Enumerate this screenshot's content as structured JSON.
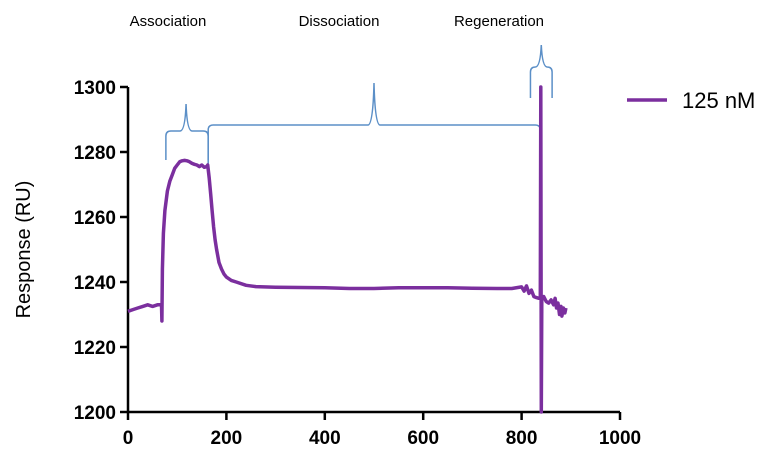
{
  "chart_data": {
    "type": "line",
    "title": "",
    "xlabel": "",
    "ylabel": "Response (RU)",
    "xlim": [
      0,
      1000
    ],
    "ylim": [
      1200,
      1300
    ],
    "x_ticks": [
      0,
      200,
      400,
      600,
      800,
      1000
    ],
    "y_ticks": [
      1200,
      1220,
      1240,
      1260,
      1280,
      1300
    ],
    "grid": false,
    "legend_position": "top-right",
    "colors": {
      "series": "#7b2f9e",
      "annotation": "#5b8fc7",
      "axis": "#000000"
    },
    "series": [
      {
        "name": "125 nM",
        "color": "#7b2f9e",
        "points": [
          [
            0,
            1231
          ],
          [
            10,
            1231.5
          ],
          [
            20,
            1232
          ],
          [
            30,
            1232.5
          ],
          [
            40,
            1233
          ],
          [
            50,
            1232.5
          ],
          [
            60,
            1233
          ],
          [
            68,
            1233
          ],
          [
            69,
            1228
          ],
          [
            70,
            1244
          ],
          [
            72,
            1255
          ],
          [
            75,
            1262
          ],
          [
            80,
            1268
          ],
          [
            85,
            1271
          ],
          [
            90,
            1273
          ],
          [
            95,
            1275
          ],
          [
            100,
            1276
          ],
          [
            105,
            1277
          ],
          [
            110,
            1277.3
          ],
          [
            115,
            1277.4
          ],
          [
            120,
            1277.3
          ],
          [
            125,
            1277
          ],
          [
            130,
            1276.5
          ],
          [
            135,
            1276.2
          ],
          [
            140,
            1276
          ],
          [
            145,
            1275.5
          ],
          [
            150,
            1276
          ],
          [
            155,
            1275.3
          ],
          [
            160,
            1275.5
          ],
          [
            162,
            1276
          ],
          [
            165,
            1272
          ],
          [
            168,
            1267
          ],
          [
            171,
            1262
          ],
          [
            174,
            1257
          ],
          [
            177,
            1253
          ],
          [
            180,
            1250
          ],
          [
            185,
            1246
          ],
          [
            190,
            1244
          ],
          [
            195,
            1242.5
          ],
          [
            200,
            1241.5
          ],
          [
            210,
            1240.5
          ],
          [
            220,
            1240
          ],
          [
            240,
            1239
          ],
          [
            260,
            1238.6
          ],
          [
            300,
            1238.4
          ],
          [
            350,
            1238.3
          ],
          [
            400,
            1238.2
          ],
          [
            450,
            1238
          ],
          [
            500,
            1238
          ],
          [
            550,
            1238.2
          ],
          [
            600,
            1238.2
          ],
          [
            650,
            1238.2
          ],
          [
            700,
            1238.1
          ],
          [
            750,
            1238
          ],
          [
            780,
            1238
          ],
          [
            800,
            1238.5
          ],
          [
            805,
            1237.2
          ],
          [
            810,
            1238.8
          ],
          [
            815,
            1236.5
          ],
          [
            820,
            1237.5
          ],
          [
            825,
            1235.5
          ],
          [
            830,
            1235.2
          ],
          [
            835,
            1235
          ],
          [
            838,
            1235
          ],
          [
            839,
            1300
          ],
          [
            840,
            1200
          ],
          [
            841,
            1235
          ],
          [
            845,
            1235.5
          ],
          [
            850,
            1234
          ],
          [
            855,
            1233.5
          ],
          [
            860,
            1234.5
          ],
          [
            865,
            1233
          ],
          [
            868,
            1235
          ],
          [
            871,
            1232
          ],
          [
            874,
            1233.5
          ],
          [
            877,
            1230
          ],
          [
            880,
            1232.5
          ],
          [
            882,
            1229.5
          ],
          [
            885,
            1232
          ],
          [
            888,
            1230.5
          ],
          [
            890,
            1232
          ]
        ]
      }
    ],
    "annotations": [
      {
        "label": "Association",
        "x_start": 77,
        "x_end": 163,
        "x_peak": 118
      },
      {
        "label": "Dissociation",
        "x_start": 163,
        "x_end": 838,
        "x_peak": 500
      },
      {
        "label": "Regeneration",
        "x_start": 818,
        "x_end": 862,
        "x_peak": 840
      }
    ]
  }
}
